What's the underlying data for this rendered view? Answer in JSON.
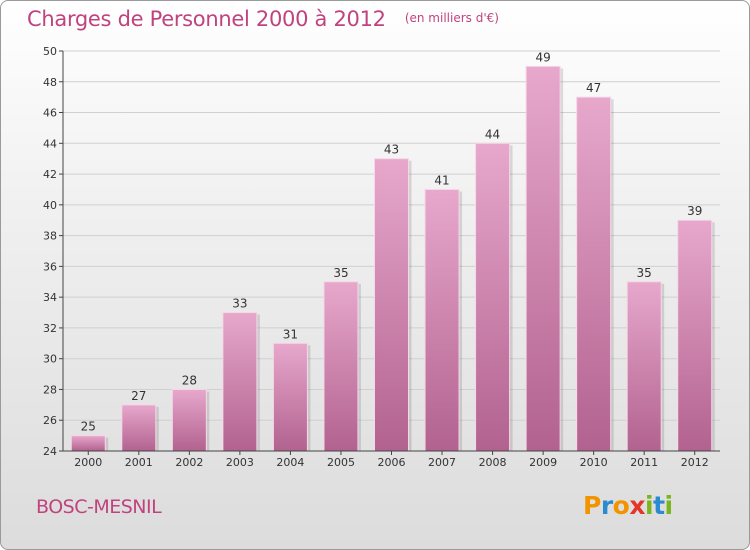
{
  "title": "Charges de Personnel 2000 à 2012",
  "subtitle": "(en milliers d'€)",
  "place": "BOSC-MESNIL",
  "logo": {
    "text": "Proxiti",
    "letters": [
      "P",
      "r",
      "o",
      "x",
      "i",
      "t",
      "i"
    ],
    "colors": [
      "#f29400",
      "#2a8bd0",
      "#f29400",
      "#e4352b",
      "#7ab51d",
      "#2a8bd0",
      "#7ab51d"
    ]
  },
  "colors": {
    "accent": "#c0437f",
    "bar_light": "#e7a8cc",
    "bar_dark": "#b2628f"
  },
  "chart_data": {
    "type": "bar",
    "categories": [
      "2000",
      "2001",
      "2002",
      "2003",
      "2004",
      "2005",
      "2006",
      "2007",
      "2008",
      "2009",
      "2010",
      "2011",
      "2012"
    ],
    "values": [
      25,
      27,
      28,
      33,
      31,
      35,
      43,
      41,
      44,
      49,
      47,
      35,
      39
    ],
    "ylim": [
      24,
      50
    ],
    "yticks": [
      24,
      26,
      28,
      30,
      32,
      34,
      36,
      38,
      40,
      42,
      44,
      46,
      48,
      50
    ],
    "grid": true
  }
}
